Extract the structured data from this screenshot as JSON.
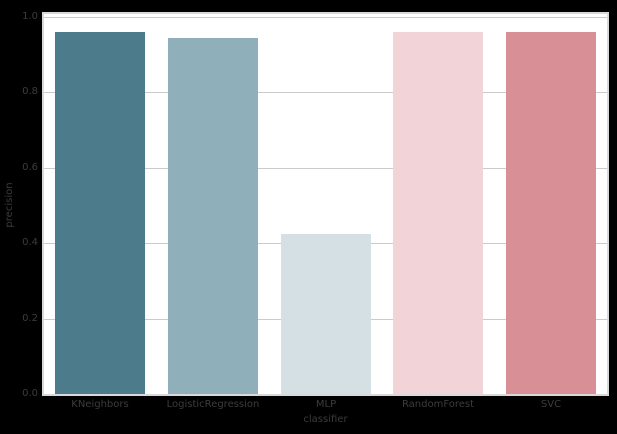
{
  "chart_data": {
    "type": "bar",
    "title": "",
    "xlabel": "classifier",
    "ylabel": "precision",
    "categories": [
      "KNeighbors",
      "LogisticRegression",
      "MLP",
      "RandomForest",
      "SVC"
    ],
    "values": [
      0.96,
      0.945,
      0.425,
      0.96,
      0.96
    ],
    "bar_colors": [
      "#4c7b8c",
      "#8fafbb",
      "#d5e0e5",
      "#f2d4d8",
      "#d89096"
    ],
    "ylim": [
      0,
      1.008
    ],
    "yticks": [
      0.0,
      0.2,
      0.4,
      0.6,
      0.8,
      1.0
    ],
    "ytick_labels": [
      "0.0",
      "0.2",
      "0.4",
      "0.6",
      "0.8",
      "1.0"
    ],
    "grid": true,
    "legend": "none",
    "gridline_color": "#cbcbcb",
    "figure_background": "#000000",
    "axes_background": "#ffffff",
    "spine_color": "#d9d9d9",
    "text_color": "#3c3c3c"
  }
}
